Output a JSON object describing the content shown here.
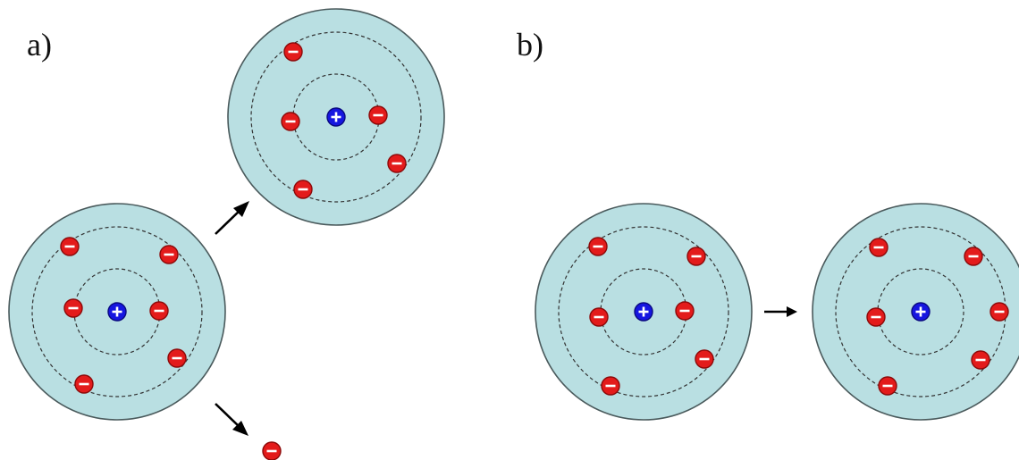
{
  "panel_a": {
    "label": "a)"
  },
  "panel_b": {
    "label": "b)"
  },
  "colors": {
    "atom_fill": "#b9dfe2",
    "atom_stroke": "#4a5a5c",
    "electron": "#e31b1b",
    "electron_stroke": "#8c0a0a",
    "nucleus": "#1616e0",
    "nucleus_stroke": "#0a0a80"
  },
  "symbols": {
    "electron": "minus-sign",
    "nucleus": "plus-sign"
  }
}
